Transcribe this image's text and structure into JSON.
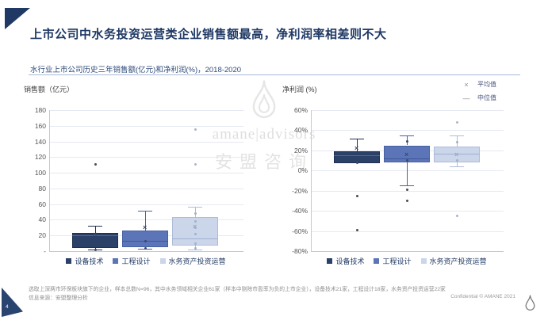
{
  "slide": {
    "title": "上市公司中水务投资运营类企业销售额最高，净利润率相差则不大",
    "subtitle": "水行业上市公司历史三年销售额(亿元)和净利润(%)，2018-2020",
    "page_number": "4",
    "confidential": "Confidential © AMANE 2021",
    "footnote_line1": "选取上深两市环保板块旗下的企业，样本总数N=96，其中水务领域相关企业61家（样本中剔除市盈率为负的上市企业），设备技术21家，工程设计18家，水务资产投资运营22家",
    "footnote_line2": "信息来源：安盟整理分析",
    "watermark": {
      "brand": "amane|advisors",
      "brand_cn": "安盟咨询"
    }
  },
  "colors": {
    "title_navy": "#1f3864",
    "grid": "#e6e9f2",
    "axis": "#c3c9d6",
    "series_dark": "#2b4168",
    "series_mid": "#5c75b9",
    "series_light": "#ccd6ea"
  },
  "chart_data": [
    {
      "type": "boxplot",
      "axis_title": "销售额（亿元）",
      "ylim": [
        0,
        180
      ],
      "tick_step": 20,
      "tick_labels": [
        "-",
        "20",
        "40",
        "60",
        "80",
        "100",
        "120",
        "140",
        "160",
        "180"
      ],
      "categories": [
        "设备技术",
        "工程设计",
        "水务资产投资运营"
      ],
      "legend_position": "bottom",
      "boxes": [
        {
          "name": "设备技术",
          "fill": "#2b4168",
          "edge": "#1d2f51",
          "median_color": "#54688f",
          "low": 2,
          "q1": 4,
          "median": 20,
          "q3": 23,
          "high": 32,
          "mean": 21,
          "outliers": [
            111
          ],
          "points": [
            2
          ]
        },
        {
          "name": "工程设计",
          "fill": "#5c75b9",
          "edge": "#47609f",
          "median_color": "#3e5796",
          "low": 3,
          "q1": 5,
          "median": 13,
          "q3": 26,
          "high": 52,
          "mean": 30,
          "outliers": [],
          "points": [
            13,
            4
          ]
        },
        {
          "name": "水务资产投资运营",
          "fill": "#ccd6ea",
          "edge": "#aebcd9",
          "median_color": "#9fb0d0",
          "low": 2,
          "q1": 7,
          "median": 16,
          "q3": 43,
          "high": 57,
          "mean": 31,
          "outliers": [
            111,
            155
          ],
          "points": [
            48,
            38,
            30,
            22,
            10,
            4
          ]
        }
      ]
    },
    {
      "type": "boxplot",
      "axis_title": "净利润 (%)",
      "ylim": [
        -80,
        60
      ],
      "tick_step": 20,
      "tick_labels": [
        "-80%",
        "-60%",
        "-40%",
        "-20%",
        "0%",
        "20%",
        "40%",
        "60%"
      ],
      "categories": [
        "设备技术",
        "工程设计",
        "水务资产投资运营"
      ],
      "legend_position": "bottom",
      "marker_legend": [
        {
          "symbol": "×",
          "label": "平均值"
        },
        {
          "symbol": "—",
          "label": "中位值"
        }
      ],
      "boxes": [
        {
          "name": "设备技术",
          "fill": "#2b4168",
          "edge": "#1d2f51",
          "median_color": "#54688f",
          "low": 7,
          "q1": 7,
          "median": 15,
          "q3": 19,
          "high": 32,
          "mean": 22,
          "outliers": [
            -25,
            -59
          ],
          "points": [
            8
          ]
        },
        {
          "name": "工程设计",
          "fill": "#5c75b9",
          "edge": "#47609f",
          "median_color": "#3e5796",
          "low": -15,
          "q1": 8,
          "median": 12,
          "q3": 25,
          "high": 35,
          "mean": 16,
          "outliers": [
            -19,
            -30
          ],
          "points": [
            29,
            10
          ]
        },
        {
          "name": "水务资产投资运营",
          "fill": "#ccd6ea",
          "edge": "#aebcd9",
          "median_color": "#9fb0d0",
          "low": 4,
          "q1": 8,
          "median": 17,
          "q3": 24,
          "high": 35,
          "mean": 16,
          "outliers": [
            48,
            -45
          ],
          "points": [
            28,
            10
          ]
        }
      ]
    }
  ]
}
